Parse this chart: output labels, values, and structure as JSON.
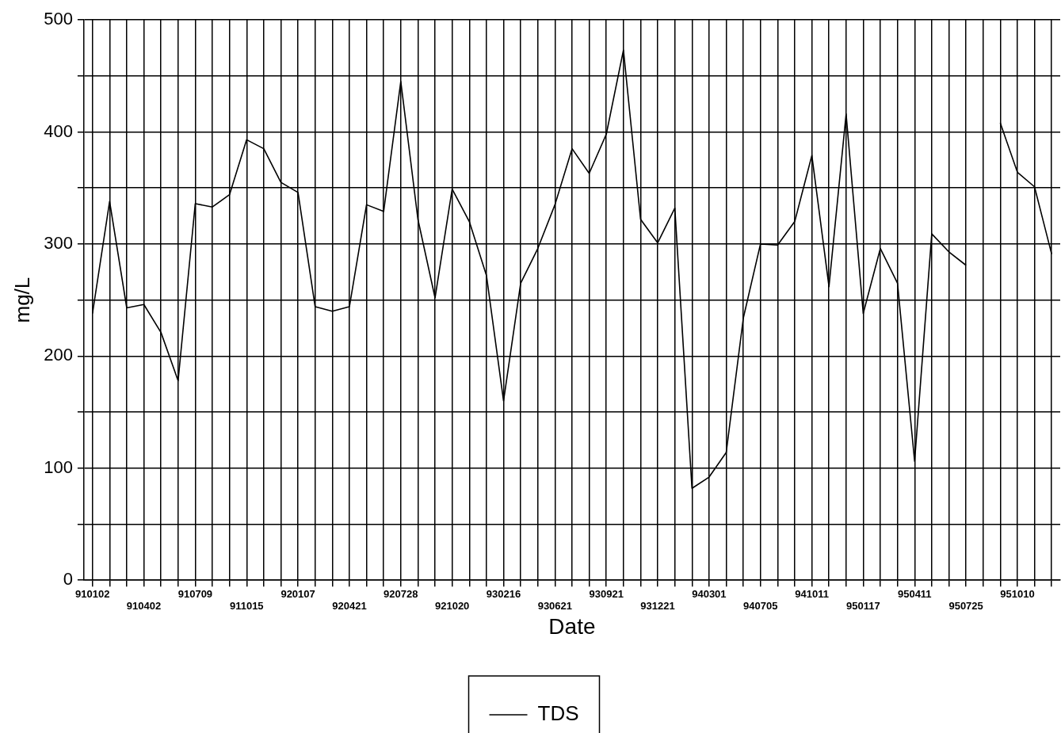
{
  "chart_data": {
    "type": "line",
    "xlabel": "Date",
    "ylabel": "mg/L",
    "categories": [
      "910102",
      null,
      null,
      "910402",
      null,
      null,
      "910709",
      null,
      null,
      "911015",
      null,
      null,
      "920107",
      null,
      null,
      "920421",
      null,
      null,
      "920728",
      null,
      null,
      "921020",
      null,
      null,
      "930216",
      null,
      null,
      "930621",
      null,
      null,
      "930921",
      null,
      null,
      "931221",
      null,
      null,
      "940301",
      null,
      null,
      "940705",
      null,
      null,
      "941011",
      null,
      null,
      "950117",
      null,
      null,
      "950411",
      null,
      null,
      "950725",
      null,
      null,
      "951010",
      null,
      null
    ],
    "series": [
      {
        "name": "TDS",
        "color": "#000000",
        "values": [
          238,
          338,
          243,
          246,
          221,
          178,
          336,
          333,
          344,
          393,
          385,
          355,
          346,
          244,
          240,
          244,
          335,
          329,
          445,
          322,
          252,
          349,
          320,
          272,
          160,
          265,
          296,
          335,
          385,
          363,
          398,
          473,
          322,
          301,
          332,
          82,
          92,
          114,
          234,
          300,
          299,
          320,
          379,
          262,
          416,
          238,
          296,
          265,
          106,
          309,
          293,
          281,
          null,
          408,
          364,
          351,
          291
        ]
      }
    ],
    "ylim": [
      0,
      500
    ],
    "yticks": [
      0,
      {
        "value": 50,
        "label": null
      },
      100,
      {
        "value": 150,
        "label": null
      },
      200,
      {
        "value": 250,
        "label": null
      },
      300,
      {
        "value": 350,
        "label": null
      },
      400,
      {
        "value": 450,
        "label": null
      },
      500
    ],
    "grid": true,
    "legend": "bottom",
    "marker": "none",
    "line_style": "solid"
  }
}
